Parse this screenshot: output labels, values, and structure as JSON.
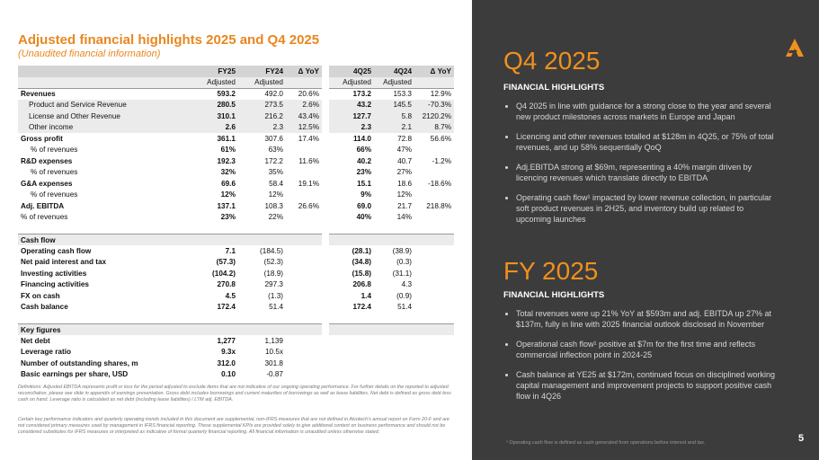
{
  "header": {
    "title": "Adjusted financial highlights 2025 and Q4 2025",
    "subtitle": "(Unaudited financial information)"
  },
  "table": {
    "columns": [
      null,
      "FY25",
      "FY24",
      "Δ YoY",
      "4Q25",
      "4Q24",
      "Δ YoY"
    ],
    "subheader": [
      null,
      "Adjusted",
      "Adjusted",
      null,
      "Adjusted",
      "Adjusted",
      null
    ],
    "rows": [
      [
        "Revenues",
        "593.2",
        "492.0",
        "20.6%",
        "173.2",
        "153.3",
        "12.9%"
      ],
      [
        "Product and Service Revenue",
        "280.5",
        "273.5",
        "2.6%",
        "43.2",
        "145.5",
        "-70.3%"
      ],
      [
        "License and Other Revenue",
        "310.1",
        "216.2",
        "43.4%",
        "127.7",
        "5.8",
        "2120.2%"
      ],
      [
        "Other income",
        "2.6",
        "2.3",
        "12.5%",
        "2.3",
        "2.1",
        "8.7%"
      ],
      [
        "Gross profit",
        "361.1",
        "307.6",
        "17.4%",
        "114.0",
        "72.8",
        "56.6%"
      ],
      [
        "% of revenues",
        "61%",
        "63%",
        null,
        "66%",
        "47%",
        null
      ],
      [
        "R&D expenses",
        "192.3",
        "172.2",
        "11.6%",
        "40.2",
        "40.7",
        "-1.2%"
      ],
      [
        "% of revenues",
        "32%",
        "35%",
        null,
        "23%",
        "27%",
        null
      ],
      [
        "G&A expenses",
        "69.6",
        "58.4",
        "19.1%",
        "15.1",
        "18.6",
        "-18.6%"
      ],
      [
        "% of revenues",
        "12%",
        "12%",
        null,
        "9%",
        "12%",
        null
      ],
      [
        "Adj. EBITDA",
        "137.1",
        "108.3",
        "26.6%",
        "69.0",
        "21.7",
        "218.8%"
      ],
      [
        "% of revenues",
        "23%",
        "22%",
        null,
        "40%",
        "14%",
        null
      ],
      [
        "Cash flow"
      ],
      [
        "Operating cash flow",
        "7.1",
        "(184.5)",
        null,
        "(28.1)",
        "(38.9)",
        null
      ],
      [
        "Net paid interest and tax",
        "(57.3)",
        "(52.3)",
        null,
        "(34.8)",
        "(0.3)",
        null
      ],
      [
        "Investing activities",
        "(104.2)",
        "(18.9)",
        null,
        "(15.8)",
        "(31.1)",
        null
      ],
      [
        "Financing activities",
        "270.8",
        "297.3",
        null,
        "206.8",
        "4.3",
        null
      ],
      [
        "FX on cash",
        "4.5",
        "(1.3)",
        null,
        "1.4",
        "(0.9)",
        null
      ],
      [
        "Cash balance",
        "172.4",
        "51.4",
        null,
        "172.4",
        "51.4",
        null
      ],
      [
        "Key figures"
      ],
      [
        "Net debt",
        "1,277",
        "1,139"
      ],
      [
        "Leverage ratio",
        "9.3x",
        "10.5x"
      ],
      [
        "Number of outstanding shares, m",
        "312.0",
        "301.8"
      ],
      [
        "Basic earnings per share, USD",
        "0.10",
        "-0.87"
      ]
    ]
  },
  "notes": [
    "Definitions: Adjusted EBITDA represents profit or loss for the period adjusted to exclude items that are not indicative of our ongoing operating performance. For further details on the reported to adjusted reconciliation, please see slide in appendix of earnings presentation. Gross debt includes borrowings and current maturities of borrowings as well as lease liabilities. Net debt is defined as gross debt less cash on hand. Leverage ratio is calculated as net debt (including lease liabilities) / LTM adj. EBITDA.",
    "Certain key performance indicators and quarterly operating trends included in this document are supplemental, non-IFRS measures that are not defined in Alvotech's annual report on Form 20-F and are not considered primary measures used by management in IFRS financial reporting. These supplemental KPIs are provided solely to give additional context on business performance and should not be considered substitutes for IFRS measures or interpreted as indicative of formal quarterly financial reporting. All financial information is unaudited unless otherwise stated."
  ],
  "panel": {
    "sections": [
      {
        "title": "Q4 2025",
        "subtitle": "FINANCIAL HIGHLIGHTS",
        "bullets": [
          "Q4 2025 in line with guidance for a strong close to the year and several new product milestones across markets in Europe and Japan",
          "Licencing and other revenues totalled at $128m in 4Q25, or 75% of total revenues, and up 58% sequentially QoQ",
          "Adj.EBITDA strong at $69m, representing a 40% margin driven by licencing revenues which translate directly to EBITDA",
          "Operating cash flow¹ impacted by lower revenue collection, in particular soft product revenues in 2H25, and inventory build up related to upcoming launches"
        ]
      },
      {
        "title": "FY 2025",
        "subtitle": "FINANCIAL HIGHLIGHTS",
        "bullets": [
          "Total revenues were up 21% YoY at $593m and adj. EBITDA up 27% at $137m, fully in line with 2025 financial outlook disclosed in November",
          "Operational cash flow¹ positive at $7m for the first time and reflects commercial inflection point in 2024-25",
          "Cash balance at YE25 at $172m, continued focus on disciplined working capital management and improvement projects to support positive cash flow in 4Q26"
        ]
      }
    ],
    "footnote": "¹ Operating cash flow is defined as cash generated from operations before interest and tax.",
    "page": "5"
  }
}
